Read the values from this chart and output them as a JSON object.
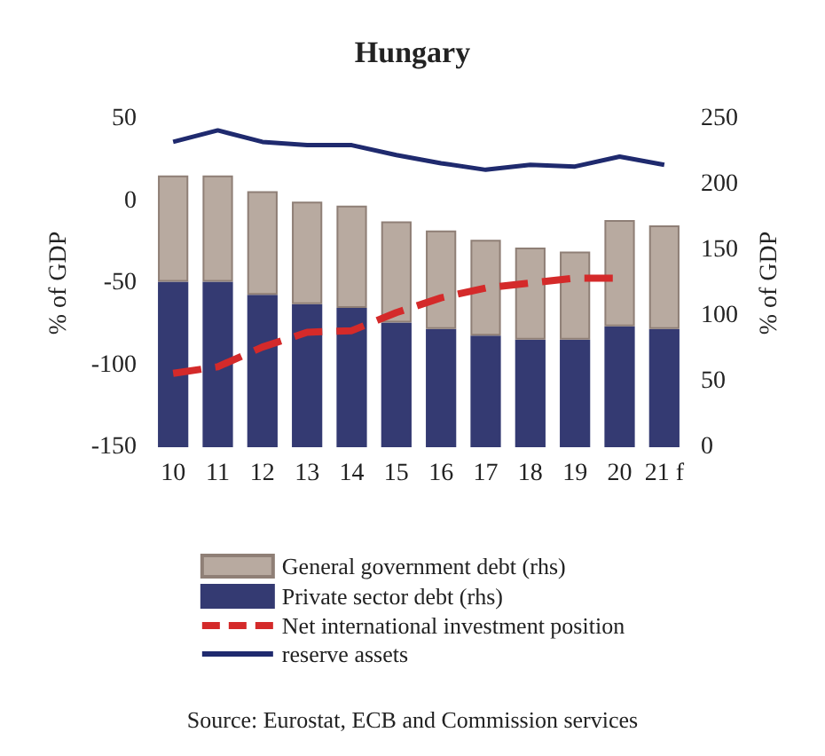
{
  "chart_data": {
    "type": "bar",
    "title": "Hungary",
    "ylabel": "% of GDP",
    "y2label": "% of GDP",
    "stacked": true,
    "legend": "bottom",
    "grid": false,
    "marker": "none",
    "categories": [
      "10",
      "11",
      "12",
      "13",
      "14",
      "15",
      "16",
      "17",
      "18",
      "19",
      "20",
      "21 f"
    ],
    "series": [
      {
        "name": "Private sector debt (rhs)",
        "axis": "y2",
        "color": "#343a72",
        "values": [
          126,
          126,
          116,
          109,
          106,
          95,
          90,
          85,
          82,
          82,
          92,
          90
        ]
      },
      {
        "name": "General government debt (rhs)",
        "axis": "y2",
        "color": "#b8aaa0",
        "values": [
          81,
          81,
          79,
          78,
          78,
          77,
          75,
          73,
          70,
          67,
          81,
          79
        ]
      },
      {
        "name": "Net international investment position",
        "type": "line",
        "axis": "y",
        "color": "#d42a2a",
        "line_style": "dashed",
        "values": [
          -105,
          -101,
          -89,
          -80,
          -79,
          -68,
          -59,
          -53,
          -50,
          -47,
          -47,
          null
        ]
      },
      {
        "name": "reserve assets",
        "type": "line",
        "axis": "y",
        "color": "#1f2a6e",
        "line_style": "solid",
        "values": [
          36,
          43,
          36,
          34,
          34,
          28,
          23,
          19,
          22,
          21,
          27,
          22
        ]
      }
    ],
    "ylim": [
      -150,
      50
    ],
    "yticks": [
      -150,
      -100,
      -50,
      0,
      50
    ],
    "y2lim": [
      0,
      250
    ],
    "y2ticks": [
      0,
      50,
      100,
      150,
      200,
      250
    ],
    "annotations": [
      "Source: Eurostat, ECB and Commission services"
    ]
  }
}
